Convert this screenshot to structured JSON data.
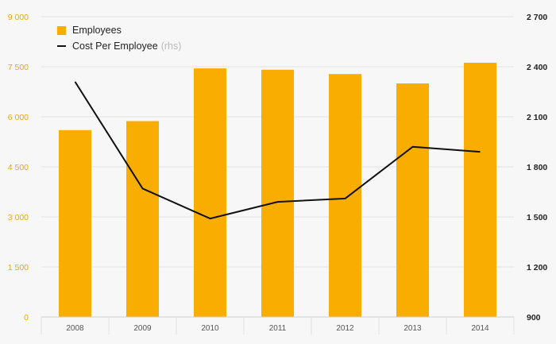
{
  "colors": {
    "bar": "#f8ad00",
    "line": "#111111",
    "left_axis_text": "#f0a800",
    "right_axis_text": "#222222",
    "grid": "#e2e2e2"
  },
  "legend": {
    "employees_label": "Employees",
    "cost_label": "Cost Per Employee",
    "cost_note": "(rhs)"
  },
  "chart_data": {
    "type": "bar",
    "categories": [
      "2008",
      "2009",
      "2010",
      "2011",
      "2012",
      "2013",
      "2014"
    ],
    "series": [
      {
        "name": "Employees",
        "type": "bar",
        "axis": "left",
        "values": [
          5600,
          5870,
          7450,
          7410,
          7280,
          7000,
          7620
        ]
      },
      {
        "name": "Cost Per Employee",
        "type": "line",
        "axis": "right",
        "values": [
          2310,
          1670,
          1490,
          1590,
          1610,
          1920,
          1890
        ]
      }
    ],
    "left_axis": {
      "ylim": [
        0,
        9000
      ],
      "ticks": [
        0,
        1500,
        3000,
        4500,
        6000,
        7500,
        9000
      ],
      "tick_labels": [
        "0",
        "1 500",
        "3 000",
        "4 500",
        "6 000",
        "7 500",
        "9 000"
      ]
    },
    "right_axis": {
      "ylim": [
        900,
        2700
      ],
      "ticks": [
        900,
        1200,
        1500,
        1800,
        2100,
        2400,
        2700
      ],
      "tick_labels": [
        "900",
        "1 200",
        "1 500",
        "1 800",
        "2 100",
        "2 400",
        "2 700"
      ]
    },
    "grid": true,
    "legend_position": "top-left"
  }
}
